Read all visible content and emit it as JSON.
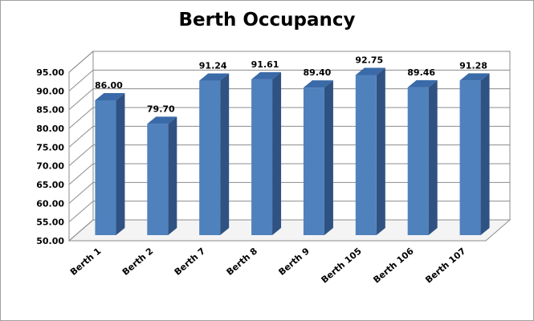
{
  "chart_data": {
    "type": "bar",
    "title": "Berth Occupancy",
    "categories": [
      "Berth 1",
      "Berth 2",
      "Berth 7",
      "Berth 8",
      "Berth 9",
      "Berth 105",
      "Berth 106",
      "Berth 107"
    ],
    "values": [
      86.0,
      79.7,
      91.24,
      91.61,
      89.4,
      92.75,
      89.46,
      91.28
    ],
    "data_labels": [
      "86.00",
      "79.70",
      "91.24",
      "91.61",
      "89.40",
      "92.75",
      "89.46",
      "91.28"
    ],
    "yticks": [
      "50.00",
      "55.00",
      "60.00",
      "65.00",
      "70.00",
      "75.00",
      "80.00",
      "85.00",
      "90.00",
      "95.00"
    ],
    "ylim": [
      50,
      95
    ],
    "xlabel": "",
    "ylabel": "",
    "grid": true,
    "style": "3d-column",
    "colors": {
      "bar_front": "#4f81bd",
      "bar_side": "#2f5282",
      "bar_top": "#3a6aa8",
      "grid": "#8c8c8c",
      "wall": "#ffffff"
    }
  }
}
